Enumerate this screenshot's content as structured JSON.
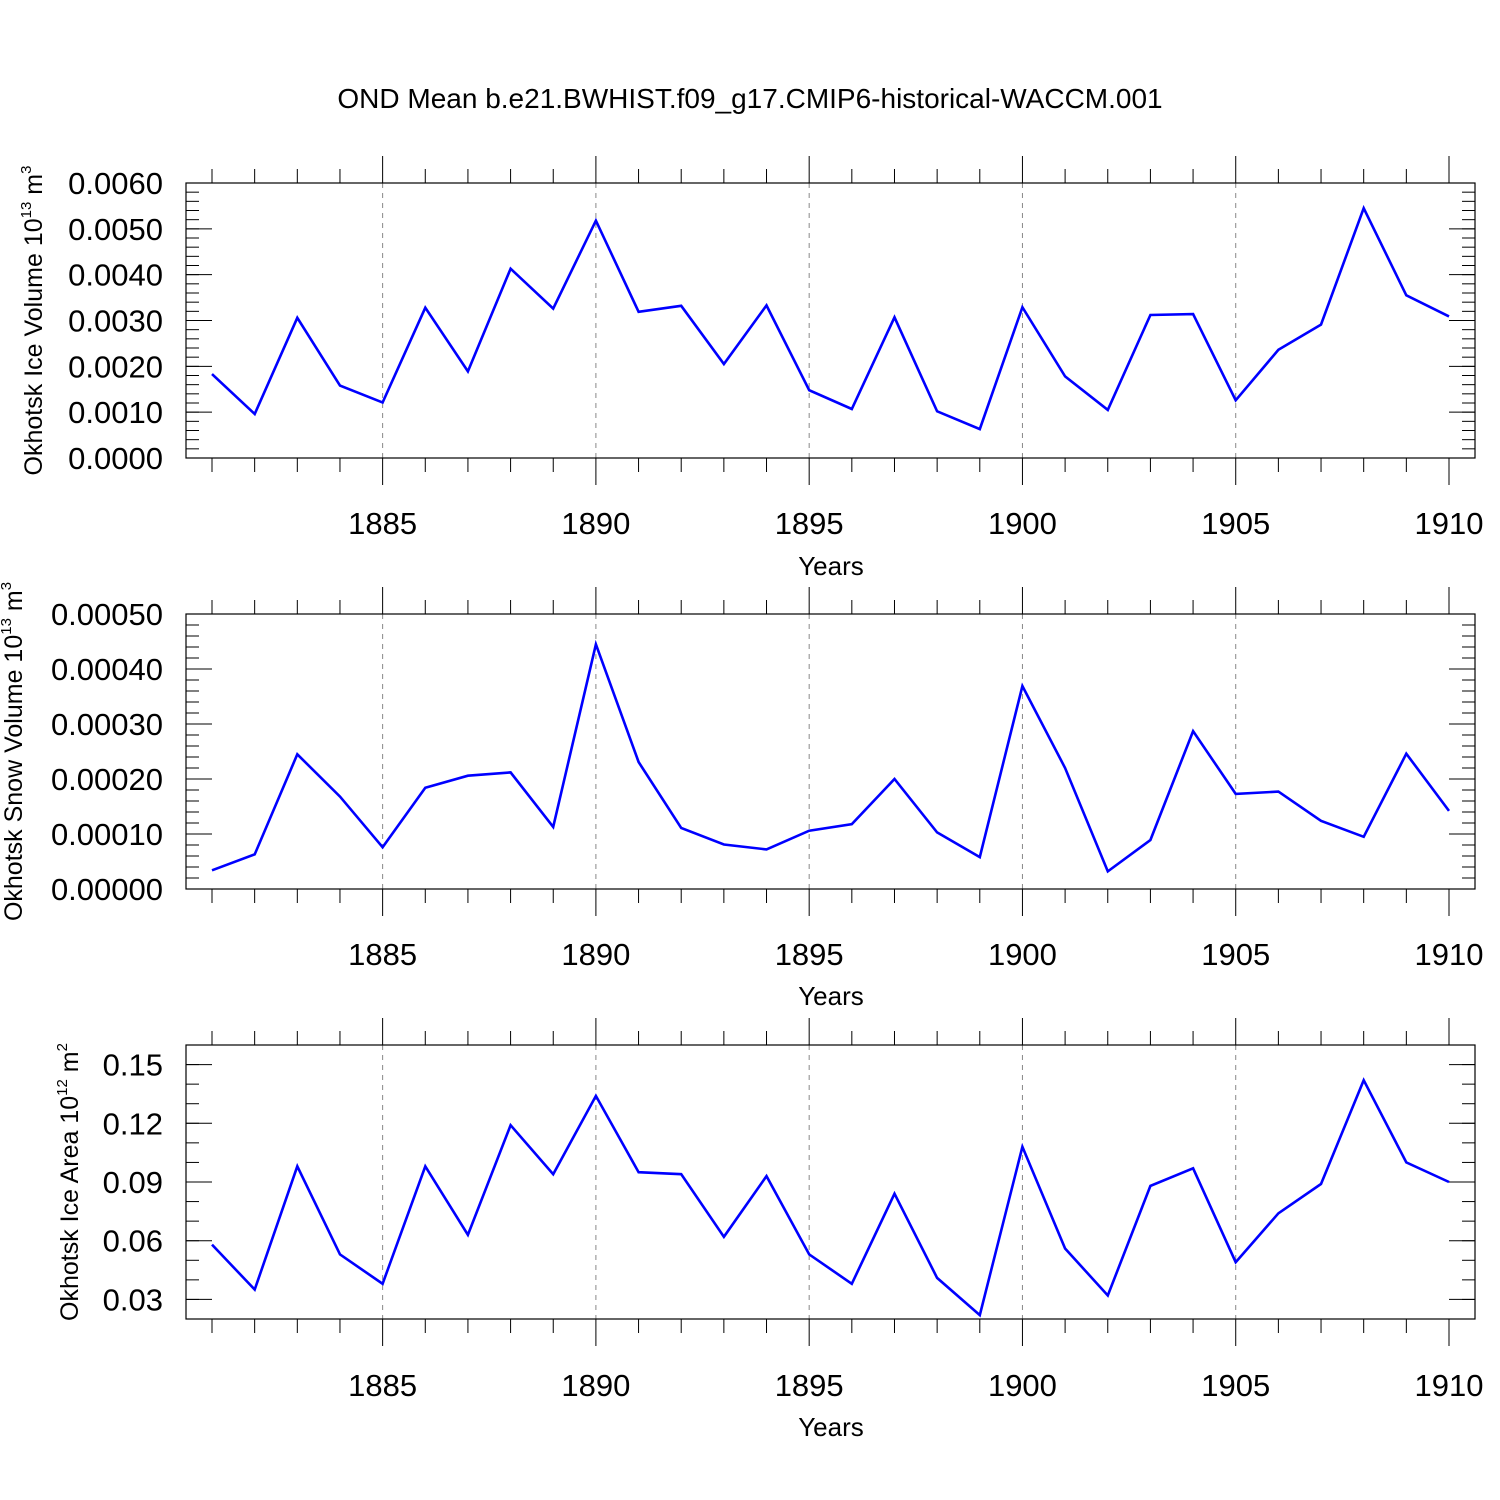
{
  "title": "OND Mean b.e21.BWHIST.f09_g17.CMIP6-historical-WACCM.001",
  "line_color": "#0000ff",
  "chart_data": [
    {
      "type": "line",
      "series": [
        {
          "name": "Okhotsk Ice Volume",
          "x": [
            1881,
            1882,
            1883,
            1884,
            1885,
            1886,
            1887,
            1888,
            1889,
            1890,
            1891,
            1892,
            1893,
            1894,
            1895,
            1896,
            1897,
            1898,
            1899,
            1900,
            1901,
            1902,
            1903,
            1904,
            1905,
            1906,
            1907,
            1908,
            1909,
            1910
          ],
          "values": [
            0.00183,
            0.00096,
            0.00306,
            0.00158,
            0.00121,
            0.00328,
            0.00189,
            0.00413,
            0.00326,
            0.00518,
            0.00319,
            0.00332,
            0.00205,
            0.00333,
            0.00148,
            0.00107,
            0.00307,
            0.00102,
            0.00063,
            0.00329,
            0.00178,
            0.00105,
            0.00312,
            0.00314,
            0.00126,
            0.00236,
            0.00291,
            0.00545,
            0.00355,
            0.00309
          ]
        }
      ],
      "ylabel": "Okhotsk Ice Volume 10",
      "ylabel_exp": "13",
      "ylabel_unit": "m",
      "ylabel_unit_exp": "3",
      "xlabel": "Years",
      "xlim": [
        1881,
        1910
      ],
      "ylim": [
        0,
        0.006
      ],
      "yticks": [
        0,
        0.001,
        0.002,
        0.003,
        0.004,
        0.005,
        0.006
      ],
      "ytick_labels": [
        "0.0000",
        "0.0010",
        "0.0020",
        "0.0030",
        "0.0040",
        "0.0050",
        "0.0060"
      ],
      "yminor_step": 0.0002,
      "xticks": [
        1885,
        1890,
        1895,
        1900,
        1905,
        1910
      ],
      "xtick_labels": [
        "1885",
        "1890",
        "1895",
        "1900",
        "1905",
        "1910"
      ],
      "grid": "vertical dashed at major x ticks"
    },
    {
      "type": "line",
      "series": [
        {
          "name": "Okhotsk Snow Volume",
          "x": [
            1881,
            1882,
            1883,
            1884,
            1885,
            1886,
            1887,
            1888,
            1889,
            1890,
            1891,
            1892,
            1893,
            1894,
            1895,
            1896,
            1897,
            1898,
            1899,
            1900,
            1901,
            1902,
            1903,
            1904,
            1905,
            1906,
            1907,
            1908,
            1909,
            1910
          ],
          "values": [
            3.4e-05,
            6.3e-05,
            0.000245,
            0.000168,
            7.6e-05,
            0.000184,
            0.000206,
            0.000212,
            0.000113,
            0.000445,
            0.000231,
            0.000111,
            8.1e-05,
            7.2e-05,
            0.000106,
            0.000118,
            0.0002,
            0.000103,
            5.8e-05,
            0.000369,
            0.00022,
            3.2e-05,
            8.9e-05,
            0.000287,
            0.000173,
            0.000177,
            0.000124,
            9.5e-05,
            0.000246,
            0.000142
          ]
        }
      ],
      "ylabel": "Okhotsk Snow Volume 10",
      "ylabel_exp": "13",
      "ylabel_unit": "m",
      "ylabel_unit_exp": "3",
      "xlabel": "Years",
      "xlim": [
        1881,
        1910
      ],
      "ylim": [
        0,
        0.0005
      ],
      "yticks": [
        0,
        0.0001,
        0.0002,
        0.0003,
        0.0004,
        0.0005
      ],
      "ytick_labels": [
        "0.00000",
        "0.00010",
        "0.00020",
        "0.00030",
        "0.00040",
        "0.00050"
      ],
      "yminor_step": 2e-05,
      "xticks": [
        1885,
        1890,
        1895,
        1900,
        1905,
        1910
      ],
      "xtick_labels": [
        "1885",
        "1890",
        "1895",
        "1900",
        "1905",
        "1910"
      ],
      "grid": "vertical dashed at major x ticks"
    },
    {
      "type": "line",
      "series": [
        {
          "name": "Okhotsk Ice Area",
          "x": [
            1881,
            1882,
            1883,
            1884,
            1885,
            1886,
            1887,
            1888,
            1889,
            1890,
            1891,
            1892,
            1893,
            1894,
            1895,
            1896,
            1897,
            1898,
            1899,
            1900,
            1901,
            1902,
            1903,
            1904,
            1905,
            1906,
            1907,
            1908,
            1909,
            1910
          ],
          "values": [
            0.058,
            0.035,
            0.098,
            0.053,
            0.038,
            0.098,
            0.063,
            0.119,
            0.094,
            0.134,
            0.095,
            0.094,
            0.062,
            0.093,
            0.053,
            0.038,
            0.084,
            0.041,
            0.022,
            0.108,
            0.056,
            0.032,
            0.088,
            0.097,
            0.049,
            0.074,
            0.089,
            0.142,
            0.1,
            0.09
          ]
        }
      ],
      "ylabel": "Okhotsk Ice Area 10",
      "ylabel_exp": "12",
      "ylabel_unit": "m",
      "ylabel_unit_exp": "2",
      "xlabel": "Years",
      "xlim": [
        1881,
        1910
      ],
      "ylim": [
        0.02,
        0.16
      ],
      "yticks": [
        0.03,
        0.06,
        0.09,
        0.12,
        0.15
      ],
      "ytick_labels": [
        "0.03",
        "0.06",
        "0.09",
        "0.12",
        "0.15"
      ],
      "yminor_step": 0.01,
      "xticks": [
        1885,
        1890,
        1895,
        1900,
        1905,
        1910
      ],
      "xtick_labels": [
        "1885",
        "1890",
        "1895",
        "1900",
        "1905",
        "1910"
      ],
      "grid": "vertical dashed at major x ticks"
    }
  ]
}
